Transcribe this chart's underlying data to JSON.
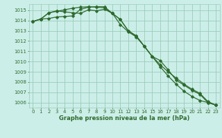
{
  "xlabel": "Graphe pression niveau de la mer (hPa)",
  "background_color": "#cceee8",
  "grid_color": "#99ccbb",
  "line_color": "#2d6a2d",
  "x_values": [
    0,
    1,
    2,
    3,
    4,
    5,
    6,
    7,
    8,
    9,
    10,
    11,
    12,
    13,
    14,
    15,
    16,
    17,
    18,
    19,
    20,
    21,
    22,
    23
  ],
  "series1": [
    1013.9,
    1014.15,
    1014.75,
    1014.9,
    1015.05,
    1015.2,
    1015.3,
    1015.35,
    1015.3,
    1015.25,
    1014.7,
    1014.1,
    1013.0,
    1012.5,
    1011.5,
    1010.5,
    1009.5,
    1008.6,
    1007.8,
    1007.1,
    1006.6,
    1006.2,
    1006.0,
    1005.75
  ],
  "series2": [
    1013.9,
    1014.15,
    1014.75,
    1014.95,
    1014.85,
    1014.75,
    1014.7,
    1015.05,
    1014.95,
    1015.1,
    1014.7,
    1014.1,
    1013.0,
    1012.5,
    1011.5,
    1010.5,
    1010.1,
    1009.2,
    1008.2,
    1007.7,
    1007.2,
    1006.8,
    1006.0,
    1005.75
  ],
  "series3": [
    1013.9,
    1014.15,
    1014.2,
    1014.35,
    1014.4,
    1014.45,
    1015.1,
    1015.3,
    1015.35,
    1015.35,
    1014.7,
    1013.6,
    1012.9,
    1012.4,
    1011.5,
    1010.5,
    1009.7,
    1009.0,
    1008.4,
    1007.8,
    1007.3,
    1006.9,
    1006.1,
    1005.75
  ],
  "ylim_min": 1005.5,
  "ylim_max": 1015.6,
  "yticks": [
    1006,
    1007,
    1008,
    1009,
    1010,
    1011,
    1012,
    1013,
    1014,
    1015
  ],
  "marker_size": 2.5,
  "line_width": 0.9,
  "tick_fontsize": 5.0,
  "xlabel_fontsize": 6.0
}
